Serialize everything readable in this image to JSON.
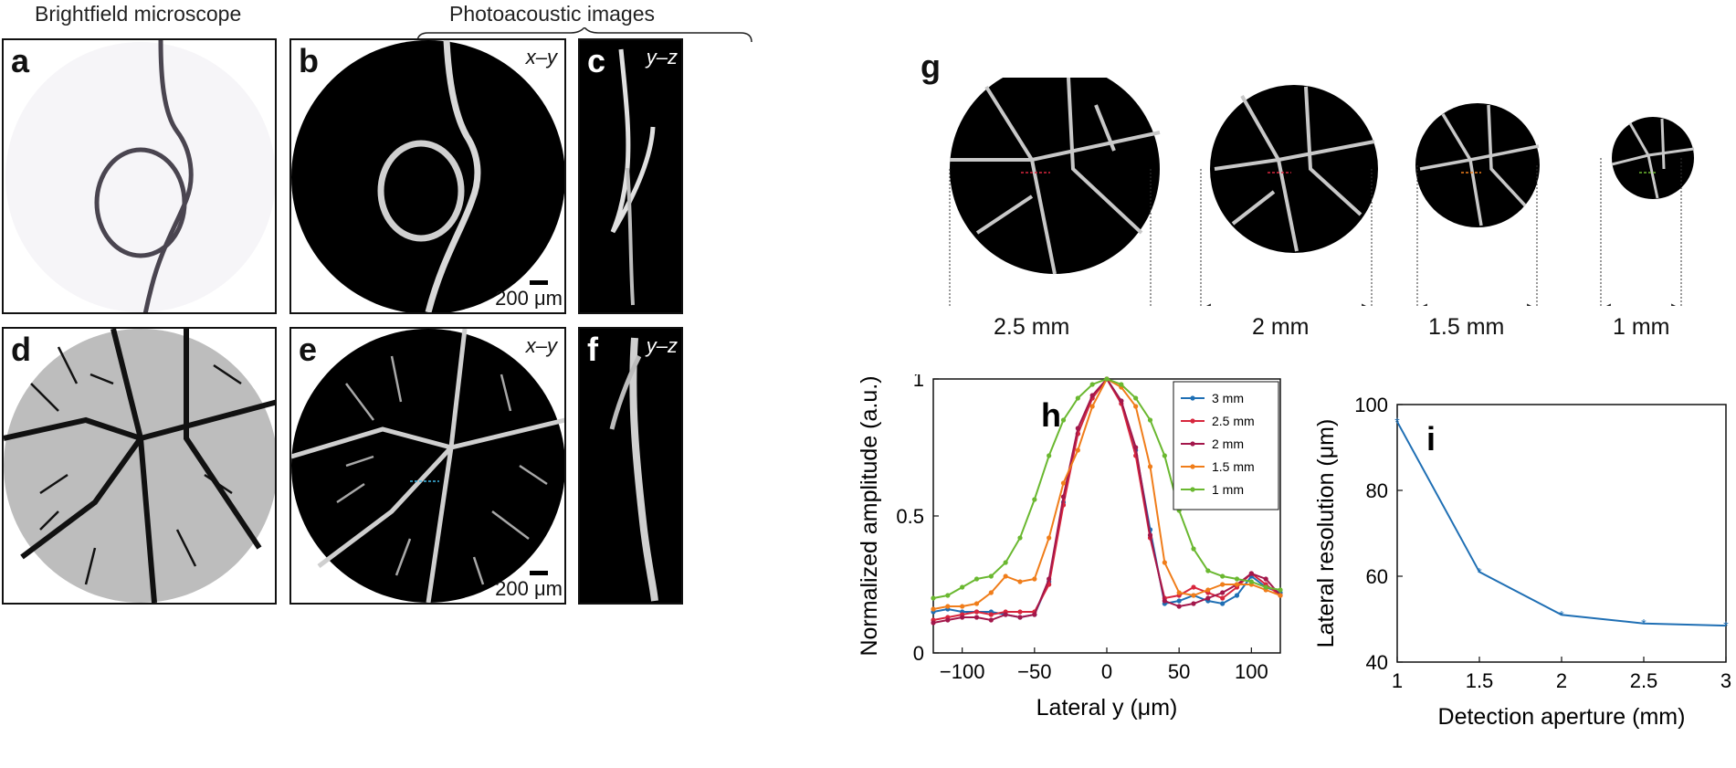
{
  "headers": {
    "brightfield": "Brightfield microscope",
    "photoacoustic": "Photoacoustic images"
  },
  "panel_labels": {
    "a": "a",
    "b": "b",
    "c": "c",
    "d": "d",
    "e": "e",
    "f": "f",
    "g": "g",
    "h": "h",
    "i": "i"
  },
  "coords": {
    "xy": "x–y",
    "yz": "y–z"
  },
  "scale_bar": "200 μm",
  "apertures": [
    "2.5 mm",
    "2 mm",
    "1.5 mm",
    "1 mm"
  ],
  "colors": {
    "black": "#000000",
    "blue": "#1f6fb4",
    "red": "#d7263d",
    "crimson": "#a3174b",
    "orange": "#f07d1a",
    "green": "#6ab830",
    "cyan": "#3fb7e6"
  },
  "chart_data": [
    {
      "type": "line",
      "panel": "h",
      "xlabel": "Lateral y (μm)",
      "ylabel": "Normalized amplitude (a.u.)",
      "xlim": [
        -120,
        120
      ],
      "ylim": [
        0,
        1
      ],
      "xticks": [
        "−100",
        "−50",
        "0",
        "50",
        "100"
      ],
      "yticks": [
        "0",
        "0.5",
        "1"
      ],
      "legend": "top-right",
      "series": [
        {
          "name": "3 mm",
          "color": "#1f6fb4",
          "x": [
            -120,
            -110,
            -100,
            -90,
            -80,
            -70,
            -60,
            -50,
            -40,
            -30,
            -20,
            -10,
            0,
            10,
            20,
            30,
            40,
            50,
            60,
            70,
            80,
            90,
            100,
            110,
            120
          ],
          "y": [
            0.15,
            0.16,
            0.15,
            0.15,
            0.15,
            0.14,
            0.13,
            0.14,
            0.26,
            0.55,
            0.8,
            0.93,
            1.0,
            0.92,
            0.74,
            0.45,
            0.18,
            0.19,
            0.21,
            0.19,
            0.18,
            0.21,
            0.28,
            0.24,
            0.22
          ]
        },
        {
          "name": "2.5 mm",
          "color": "#d7263d",
          "x": [
            -120,
            -110,
            -100,
            -90,
            -80,
            -70,
            -60,
            -50,
            -40,
            -30,
            -20,
            -10,
            0,
            10,
            20,
            30,
            40,
            50,
            60,
            70,
            80,
            90,
            100,
            110,
            120
          ],
          "y": [
            0.12,
            0.13,
            0.14,
            0.15,
            0.14,
            0.15,
            0.15,
            0.15,
            0.25,
            0.54,
            0.8,
            0.93,
            1.0,
            0.91,
            0.72,
            0.42,
            0.2,
            0.21,
            0.24,
            0.22,
            0.2,
            0.24,
            0.29,
            0.25,
            0.21
          ]
        },
        {
          "name": "2 mm",
          "color": "#a3174b",
          "x": [
            -120,
            -110,
            -100,
            -90,
            -80,
            -70,
            -60,
            -50,
            -40,
            -30,
            -20,
            -10,
            0,
            10,
            20,
            30,
            40,
            50,
            60,
            70,
            80,
            90,
            100,
            110,
            120
          ],
          "y": [
            0.11,
            0.12,
            0.13,
            0.13,
            0.12,
            0.14,
            0.13,
            0.14,
            0.27,
            0.57,
            0.82,
            0.94,
            1.0,
            0.92,
            0.75,
            0.43,
            0.19,
            0.17,
            0.18,
            0.2,
            0.22,
            0.25,
            0.29,
            0.27,
            0.21
          ]
        },
        {
          "name": "1.5 mm",
          "color": "#f07d1a",
          "x": [
            -120,
            -110,
            -100,
            -90,
            -80,
            -70,
            -60,
            -50,
            -40,
            -30,
            -20,
            -10,
            0,
            10,
            20,
            30,
            40,
            50,
            60,
            70,
            80,
            90,
            100,
            110,
            120
          ],
          "y": [
            0.16,
            0.17,
            0.17,
            0.18,
            0.22,
            0.28,
            0.26,
            0.27,
            0.42,
            0.62,
            0.74,
            0.9,
            1.0,
            0.97,
            0.9,
            0.68,
            0.33,
            0.22,
            0.21,
            0.23,
            0.25,
            0.25,
            0.25,
            0.23,
            0.21
          ]
        },
        {
          "name": "1 mm",
          "color": "#6ab830",
          "x": [
            -120,
            -110,
            -100,
            -90,
            -80,
            -70,
            -60,
            -50,
            -40,
            -30,
            -20,
            -10,
            0,
            10,
            20,
            30,
            40,
            50,
            60,
            70,
            80,
            90,
            100,
            110,
            120
          ],
          "y": [
            0.2,
            0.21,
            0.24,
            0.27,
            0.28,
            0.33,
            0.42,
            0.56,
            0.72,
            0.85,
            0.93,
            0.98,
            1.0,
            0.98,
            0.93,
            0.85,
            0.72,
            0.52,
            0.38,
            0.3,
            0.28,
            0.27,
            0.26,
            0.24,
            0.23
          ]
        }
      ]
    },
    {
      "type": "line",
      "panel": "i",
      "xlabel": "Detection aperture (mm)",
      "ylabel": "Lateral resolution (μm)",
      "xlim": [
        1,
        3
      ],
      "ylim": [
        40,
        100
      ],
      "xticks": [
        "1",
        "1.5",
        "2",
        "2.5",
        "3"
      ],
      "yticks": [
        "40",
        "60",
        "80",
        "100"
      ],
      "series": [
        {
          "color": "#1f6fb4",
          "x": [
            1,
            1.5,
            2,
            2.5,
            3
          ],
          "y": [
            96,
            61,
            51,
            49,
            48.5
          ]
        }
      ]
    }
  ]
}
